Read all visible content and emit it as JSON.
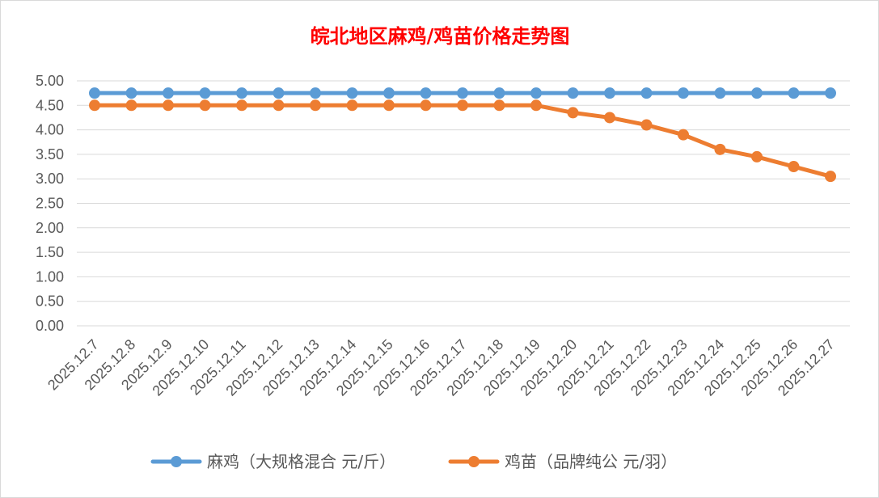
{
  "chart_data": {
    "type": "line",
    "title": "皖北地区麻鸡/鸡苗价格走势图",
    "categories": [
      "2025.12.7",
      "2025.12.8",
      "2025.12.9",
      "2025.12.10",
      "2025.12.11",
      "2025.12.12",
      "2025.12.13",
      "2025.12.14",
      "2025.12.15",
      "2025.12.16",
      "2025.12.17",
      "2025.12.18",
      "2025.12.19",
      "2025.12.20",
      "2025.12.21",
      "2025.12.22",
      "2025.12.23",
      "2025.12.24",
      "2025.12.25",
      "2025.12.26",
      "2025.12.27"
    ],
    "ylim": [
      0,
      5
    ],
    "yticks": [
      "0.00",
      "0.50",
      "1.00",
      "1.50",
      "2.00",
      "2.50",
      "3.00",
      "3.50",
      "4.00",
      "4.50",
      "5.00"
    ],
    "grid": true,
    "legend": "bottom",
    "series": [
      {
        "name": "麻鸡（大规格混合 元/斤）",
        "color": "#5b9bd5",
        "values": [
          4.75,
          4.75,
          4.75,
          4.75,
          4.75,
          4.75,
          4.75,
          4.75,
          4.75,
          4.75,
          4.75,
          4.75,
          4.75,
          4.75,
          4.75,
          4.75,
          4.75,
          4.75,
          4.75,
          4.75,
          4.75
        ]
      },
      {
        "name": "鸡苗（品牌纯公 元/羽）",
        "color": "#ed7d31",
        "values": [
          4.5,
          4.5,
          4.5,
          4.5,
          4.5,
          4.5,
          4.5,
          4.5,
          4.5,
          4.5,
          4.5,
          4.5,
          4.5,
          4.35,
          4.25,
          4.1,
          3.9,
          3.6,
          3.45,
          3.25,
          3.05
        ]
      }
    ]
  }
}
